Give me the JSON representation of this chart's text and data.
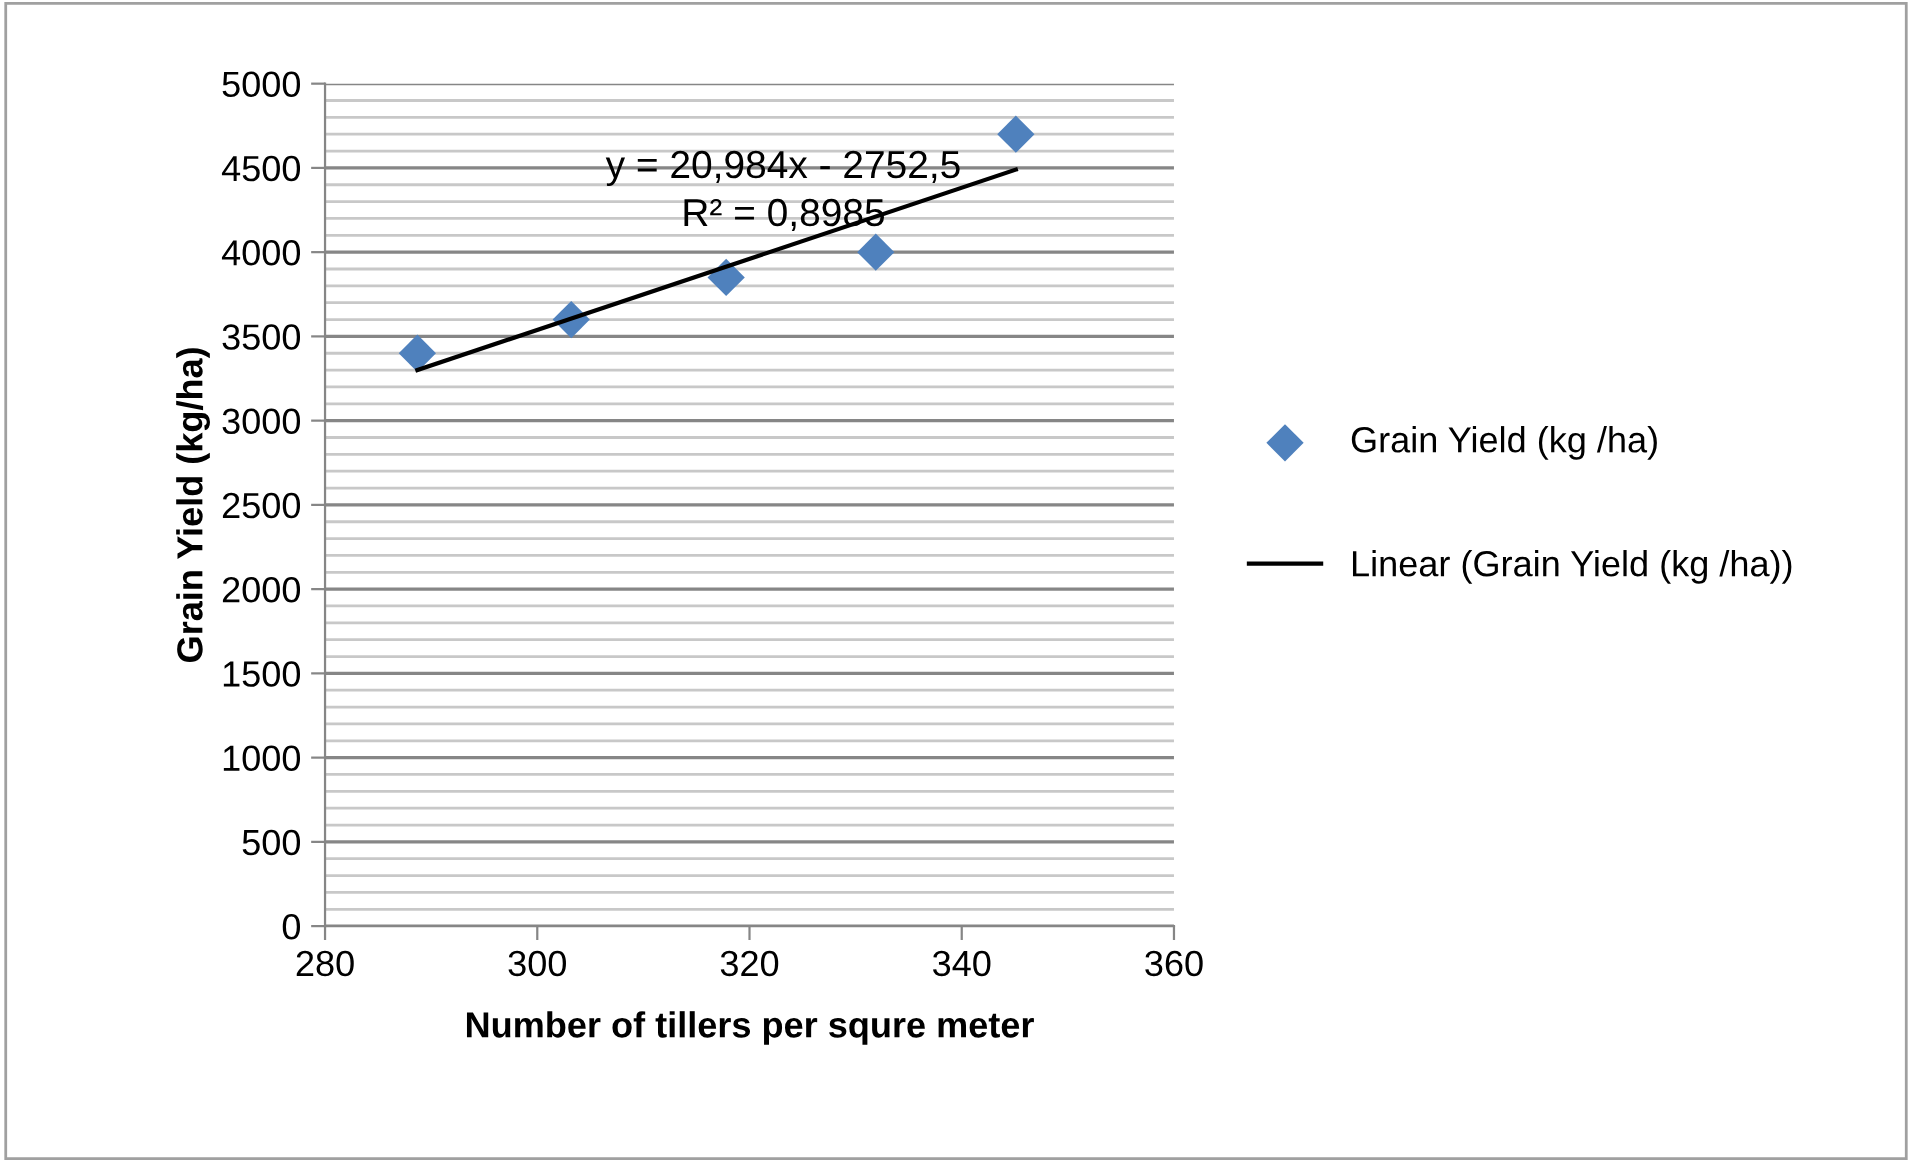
{
  "chart_data": {
    "type": "scatter",
    "xlabel": "Number of tillers per squre meter",
    "ylabel": "Grain Yield (kg/ha)",
    "x": [
      288.7,
      303.2,
      317.8,
      331.9,
      345.1
    ],
    "series": [
      {
        "name": "Grain Yield (kg /ha)",
        "color": "#4f81bd",
        "marker": "diamond",
        "values": [
          3400,
          3600,
          3850,
          4000,
          4700
        ]
      },
      {
        "name": "Linear (Grain Yield (kg /ha))",
        "type": "line",
        "color": "#000000",
        "x": [
          288.7,
          345.1
        ],
        "values": [
          3300,
          4490
        ]
      }
    ],
    "annotations": [
      "y = 20,984x - 2752,5",
      "R² = 0,8985"
    ],
    "xlim": [
      280,
      360
    ],
    "xticks": [
      280,
      300,
      320,
      340,
      360
    ],
    "ylim": [
      0,
      5000
    ],
    "yticks": [
      0,
      500,
      1000,
      1500,
      2000,
      2500,
      3000,
      3500,
      4000,
      4500,
      5000
    ],
    "grid": "y",
    "legend": "right"
  }
}
